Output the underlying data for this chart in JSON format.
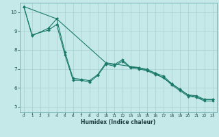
{
  "title": "",
  "xlabel": "Humidex (Indice chaleur)",
  "background_color": "#c5e8e8",
  "grid_color": "#a8d0d0",
  "line_color": "#1a7a6a",
  "xlim": [
    -0.5,
    23.5
  ],
  "ylim": [
    4.7,
    10.5
  ],
  "yticks": [
    5,
    6,
    7,
    8,
    9,
    10
  ],
  "xticks": [
    0,
    1,
    2,
    3,
    4,
    5,
    6,
    7,
    8,
    9,
    10,
    11,
    12,
    13,
    14,
    15,
    16,
    17,
    18,
    19,
    20,
    21,
    22,
    23
  ],
  "series1_x": [
    0,
    1,
    3,
    4,
    5,
    6,
    7,
    8,
    9,
    10,
    11,
    12,
    13,
    14,
    15,
    16,
    17,
    18,
    19,
    20,
    21,
    22,
    23
  ],
  "series1_y": [
    10.3,
    8.8,
    9.05,
    9.35,
    7.75,
    6.4,
    6.4,
    6.3,
    6.65,
    7.25,
    7.15,
    7.4,
    7.05,
    7.0,
    6.9,
    6.7,
    6.55,
    6.15,
    5.85,
    5.55,
    5.5,
    5.3,
    5.3
  ],
  "series2_x": [
    0,
    1,
    3,
    4,
    5,
    6,
    7,
    8,
    9,
    10,
    11,
    12,
    13,
    14,
    15,
    16,
    17,
    18,
    19,
    20,
    21,
    22,
    23
  ],
  "series2_y": [
    10.3,
    8.75,
    9.15,
    9.65,
    7.9,
    6.5,
    6.45,
    6.38,
    6.7,
    7.32,
    7.22,
    7.48,
    7.08,
    7.07,
    6.97,
    6.78,
    6.62,
    6.22,
    5.92,
    5.62,
    5.58,
    5.38,
    5.38
  ],
  "series3_x": [
    0,
    4,
    10,
    14,
    16,
    18,
    20,
    22,
    23
  ],
  "series3_y": [
    10.3,
    9.65,
    7.32,
    7.07,
    6.78,
    6.22,
    5.62,
    5.38,
    5.38
  ]
}
